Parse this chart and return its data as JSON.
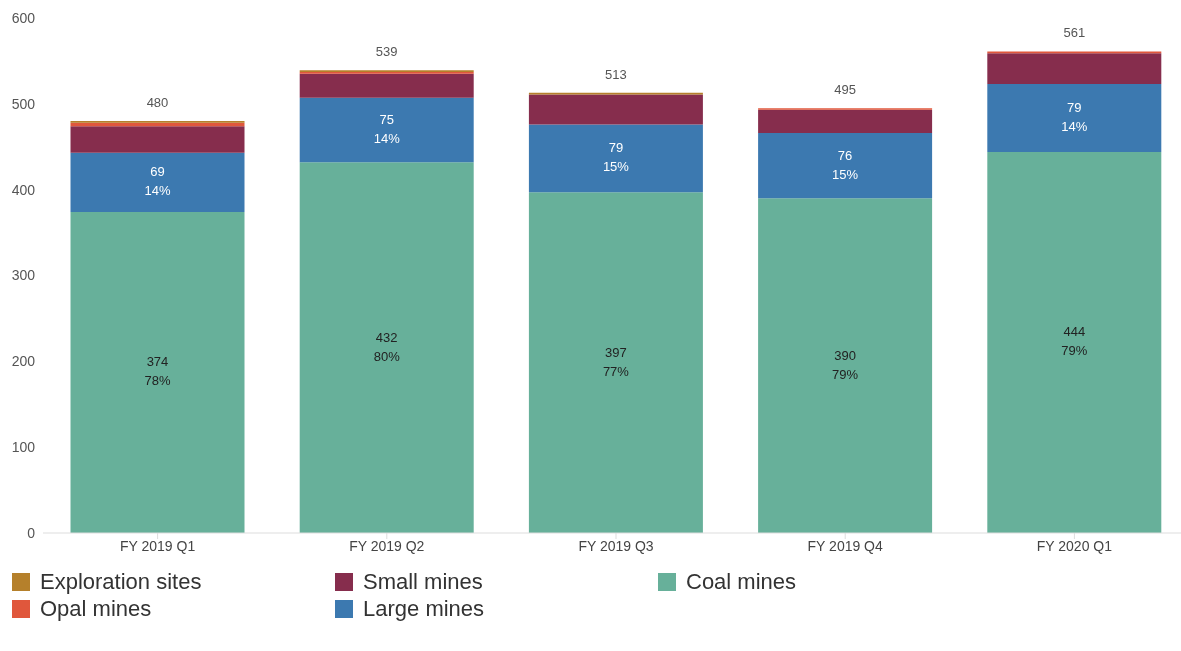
{
  "chart_data": {
    "type": "bar",
    "stacked": true,
    "categories": [
      "FY 2019 Q1",
      "FY 2019 Q2",
      "FY 2019 Q3",
      "FY 2019 Q4",
      "FY 2020 Q1"
    ],
    "series": [
      {
        "name": "Coal mines",
        "color": "#67b09a",
        "values": [
          374,
          432,
          397,
          390,
          444
        ],
        "value_labels": [
          "374\n78%",
          "432\n80%",
          "397\n77%",
          "390\n79%",
          "444\n79%"
        ]
      },
      {
        "name": "Large mines",
        "color": "#3c79b0",
        "values": [
          69,
          75,
          79,
          76,
          79
        ],
        "value_labels": [
          "69\n14%",
          "75\n14%",
          "79\n15%",
          "76\n15%",
          "79\n14%"
        ]
      },
      {
        "name": "Small mines",
        "color": "#862d4d",
        "values": [
          31,
          28,
          35,
          27,
          36
        ]
      },
      {
        "name": "Opal mines",
        "color": "#e0573c",
        "values": [
          4,
          2,
          0,
          2,
          2
        ]
      },
      {
        "name": "Exploration sites",
        "color": "#b5802b",
        "values": [
          2,
          2,
          2,
          0,
          0
        ]
      }
    ],
    "totals": [
      "480",
      "539",
      "513",
      "495",
      "561"
    ],
    "ylim": [
      0,
      600
    ],
    "yticks": [
      0,
      100,
      200,
      300,
      400,
      500,
      600
    ],
    "grid": false,
    "legend": "bottom"
  }
}
